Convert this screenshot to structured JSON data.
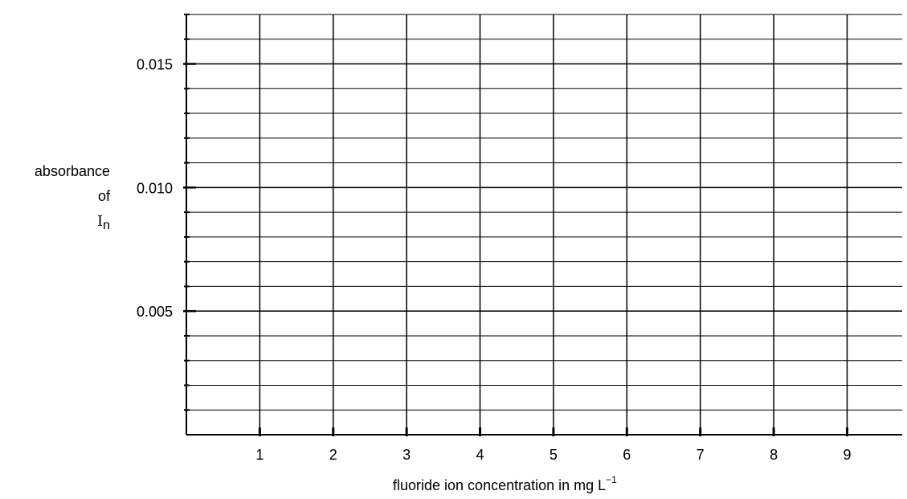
{
  "chart_data": {
    "type": "line",
    "title": "",
    "x_axis": {
      "label": "fluoride ion concentration in mg L",
      "label_superscript": "−1",
      "range": [
        0,
        9.75
      ],
      "ticks": [
        1,
        2,
        3,
        4,
        5,
        6,
        7,
        8,
        9
      ],
      "tick_labels": [
        "1",
        "2",
        "3",
        "4",
        "5",
        "6",
        "7",
        "8",
        "9"
      ]
    },
    "y_axis": {
      "label_line1": "absorbance",
      "label_line2": "of",
      "label_symbol": "I",
      "label_subscript": "n",
      "range": [
        0,
        0.017
      ],
      "ticks": [
        0.005,
        0.01,
        0.015
      ],
      "tick_labels": [
        "0.005",
        "0.010",
        "0.015"
      ],
      "minor_step": 0.001
    },
    "grid": true,
    "series": []
  }
}
